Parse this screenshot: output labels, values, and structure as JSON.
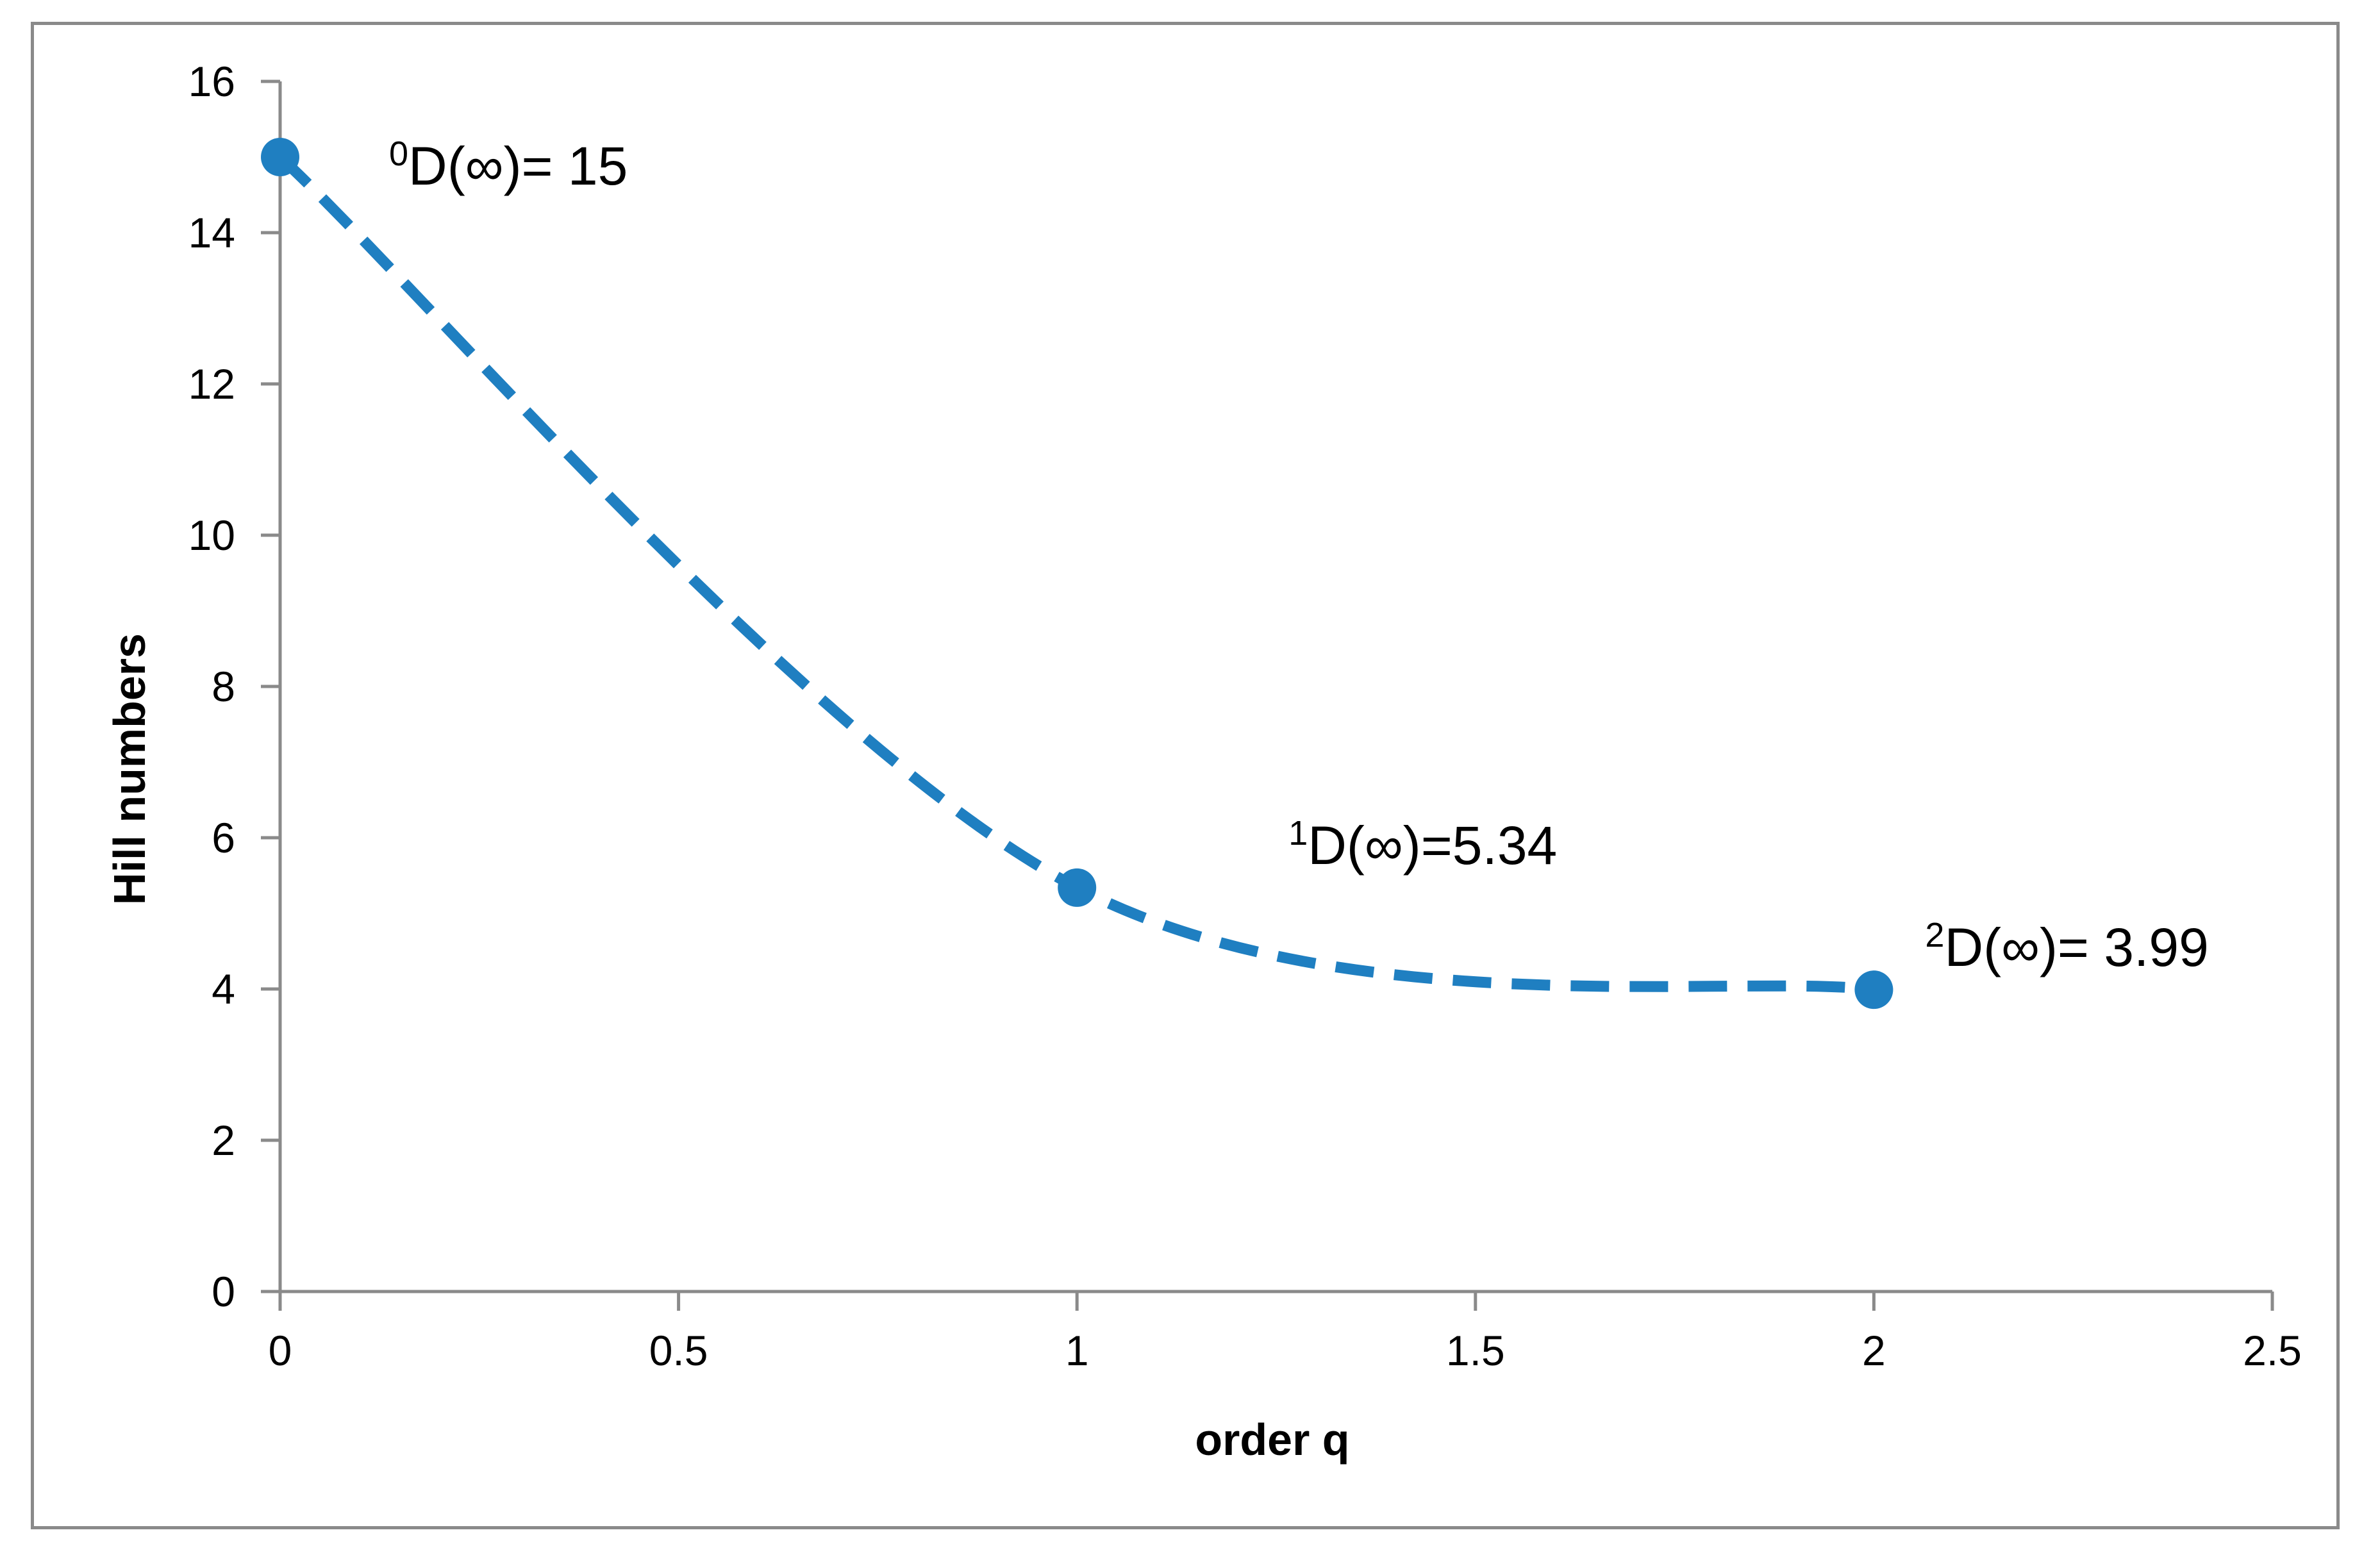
{
  "chart_data": {
    "type": "line",
    "title": "",
    "xlabel": "order q",
    "ylabel": "Hill numbers",
    "xlim": [
      0,
      2.5
    ],
    "ylim": [
      0,
      16
    ],
    "x_ticks": [
      0,
      0.5,
      1,
      1.5,
      2,
      2.5
    ],
    "x_tick_labels": [
      "0",
      "0.5",
      "1",
      "1.5",
      "2",
      "2.5"
    ],
    "y_ticks": [
      0,
      2,
      4,
      6,
      8,
      10,
      12,
      14,
      16
    ],
    "y_tick_labels": [
      "0",
      "2",
      "4",
      "6",
      "8",
      "10",
      "12",
      "14",
      "16"
    ],
    "grid": false,
    "legend": "none",
    "series": [
      {
        "x": [
          0,
          1,
          2
        ],
        "y": [
          15,
          5.34,
          3.99
        ],
        "color": "#1f7fc1",
        "line_style": "dashed",
        "smooth": true,
        "marker": "circle"
      }
    ],
    "annotations": [
      {
        "x": 0,
        "y": 15,
        "superscript": "0",
        "text": "D(∞)= 15"
      },
      {
        "x": 1,
        "y": 5.34,
        "superscript": "1",
        "text": "D(∞)=5.34"
      },
      {
        "x": 2,
        "y": 3.99,
        "superscript": "2",
        "text": "D(∞)= 3.99"
      }
    ]
  }
}
